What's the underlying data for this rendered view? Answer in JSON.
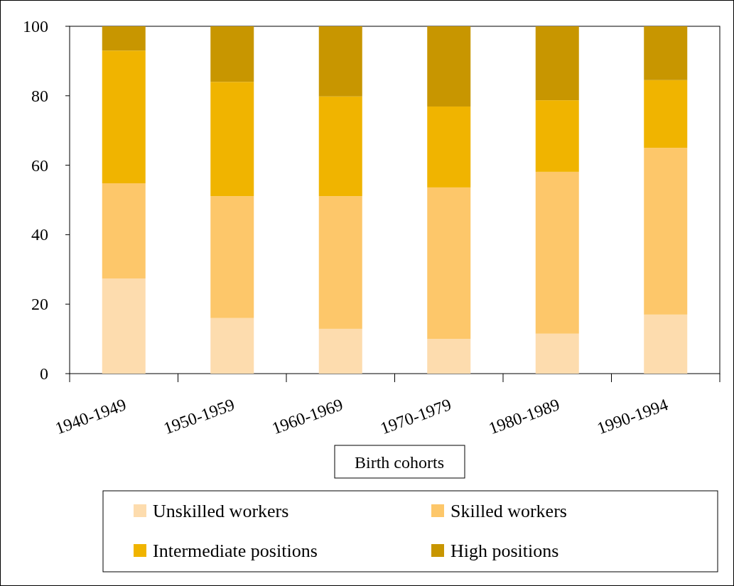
{
  "chart_data": {
    "type": "bar",
    "stacked": true,
    "xlabel": "Birth cohorts",
    "categories": [
      "1940-1949",
      "1950-1959",
      "1960-1969",
      "1970-1979",
      "1980-1989",
      "1990-1994"
    ],
    "series": [
      {
        "name": "Unskilled workers",
        "color": "#fddcae",
        "values": [
          27.4,
          16.0,
          12.9,
          10.0,
          11.5,
          17.0
        ]
      },
      {
        "name": "Skilled workers",
        "color": "#fdc76a",
        "values": [
          27.4,
          35.1,
          38.2,
          43.6,
          46.6,
          48.0
        ]
      },
      {
        "name": "Intermediate positions",
        "color": "#f0b400",
        "values": [
          38.2,
          32.9,
          28.7,
          23.3,
          20.6,
          19.5
        ]
      },
      {
        "name": "High positions",
        "color": "#c89600",
        "values": [
          7.0,
          16.0,
          20.2,
          23.1,
          21.3,
          15.5
        ]
      }
    ],
    "ylim": [
      0,
      100
    ],
    "yticks": [
      0,
      20,
      40,
      60,
      80,
      100
    ],
    "legend": "bottom"
  }
}
